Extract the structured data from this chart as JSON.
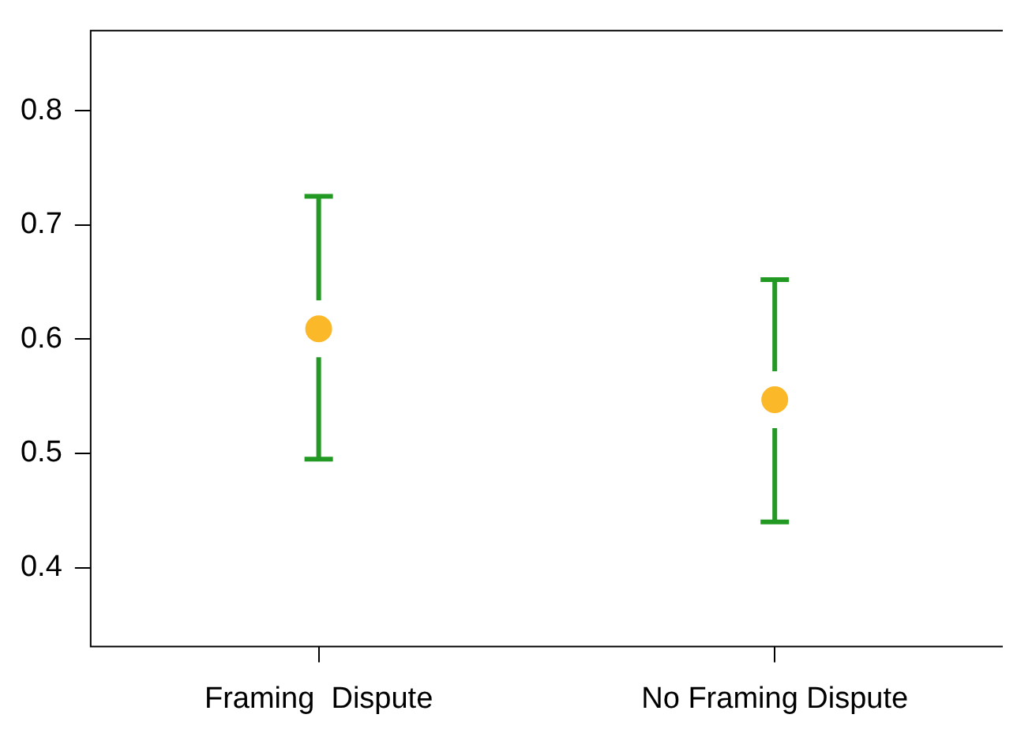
{
  "chart_data": {
    "type": "scatter",
    "categories": [
      "Framing  Dispute",
      "No Framing Dispute"
    ],
    "values": [
      0.609,
      0.547
    ],
    "errors": [
      [
        0.495,
        0.725
      ],
      [
        0.44,
        0.652
      ]
    ],
    "color": "#fbb829",
    "marker": "circle",
    "grid": false,
    "legend": false,
    "ylim": [
      0.331,
      0.87
    ],
    "yticks": [
      0.4,
      0.5,
      0.6,
      0.7,
      0.8
    ]
  }
}
